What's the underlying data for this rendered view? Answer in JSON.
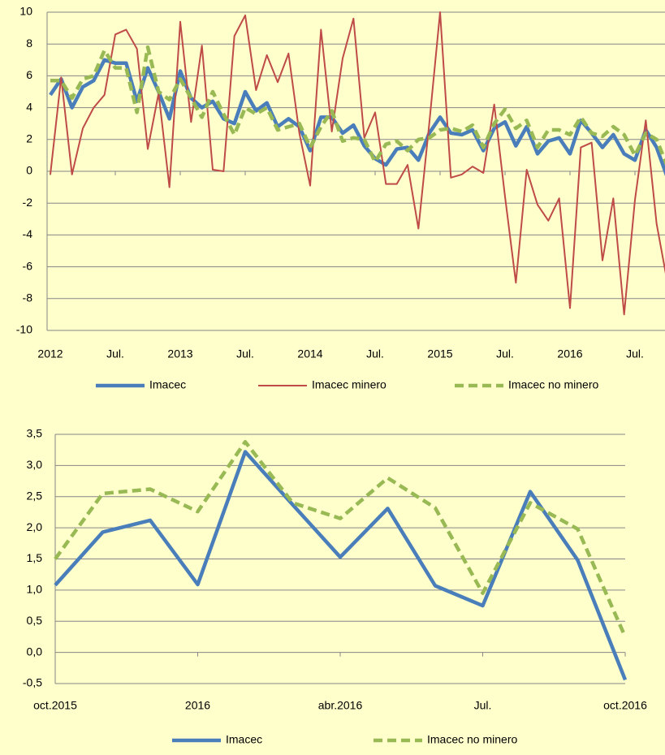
{
  "chart_data": [
    {
      "type": "line",
      "categories": [
        "2012",
        null,
        null,
        null,
        null,
        null,
        "Jul.",
        null,
        null,
        null,
        null,
        null,
        "2013",
        null,
        null,
        null,
        null,
        null,
        "Jul.",
        null,
        null,
        null,
        null,
        null,
        "2014",
        null,
        null,
        null,
        null,
        null,
        "Jul.",
        null,
        null,
        null,
        null,
        null,
        "2015",
        null,
        null,
        null,
        null,
        null,
        "Jul.",
        null,
        null,
        null,
        null,
        null,
        "2016",
        null,
        null,
        null,
        null,
        null,
        "Jul.",
        null,
        null,
        null
      ],
      "series": [
        {
          "name": "Imacec",
          "color": "#4a7ebb",
          "values": [
            4.8,
            5.8,
            4.0,
            5.3,
            5.7,
            7.0,
            6.8,
            6.8,
            4.4,
            6.5,
            5.0,
            3.3,
            6.3,
            4.6,
            4.0,
            4.4,
            3.3,
            3.0,
            5.0,
            3.8,
            4.3,
            2.8,
            3.3,
            2.8,
            1.3,
            3.4,
            3.4,
            2.4,
            2.9,
            1.6,
            0.8,
            0.4,
            1.4,
            1.5,
            0.7,
            2.4,
            3.4,
            2.4,
            2.3,
            2.6,
            1.3,
            2.7,
            3.1,
            1.6,
            2.8,
            1.1,
            1.9,
            2.1,
            1.1,
            3.2,
            2.4,
            1.5,
            2.3,
            1.1,
            0.7,
            2.6,
            1.5,
            -0.4
          ]
        },
        {
          "name": "Imacec minero",
          "color": "#be4b48",
          "values": [
            -0.2,
            5.9,
            -0.2,
            2.7,
            4.0,
            4.8,
            8.6,
            8.9,
            7.7,
            1.4,
            4.9,
            -1.0,
            9.4,
            3.1,
            7.9,
            0.1,
            0.0,
            8.5,
            9.8,
            5.1,
            7.3,
            5.6,
            7.4,
            2.4,
            -0.9,
            8.9,
            2.5,
            7.1,
            9.6,
            2.1,
            3.7,
            -0.8,
            -0.8,
            0.4,
            -3.6,
            3.0,
            10.0,
            -0.4,
            -0.2,
            0.3,
            -0.1,
            4.2,
            -1.6,
            -7.0,
            0.1,
            -2.1,
            -3.1,
            -1.7,
            -8.6,
            1.5,
            1.8,
            -5.6,
            -1.7,
            -9.0,
            -1.8,
            3.2,
            -3.3,
            -7.0
          ]
        },
        {
          "name": "Imacec no minero",
          "color": "#98b954",
          "values": [
            5.7,
            5.7,
            4.6,
            5.8,
            6.0,
            7.6,
            6.5,
            6.5,
            3.7,
            7.8,
            5.0,
            4.5,
            5.8,
            4.6,
            3.4,
            5.0,
            3.6,
            2.3,
            4.0,
            3.6,
            4.0,
            2.6,
            2.8,
            3.0,
            1.5,
            2.8,
            3.8,
            1.9,
            2.1,
            2.0,
            0.6,
            1.7,
            1.9,
            1.3,
            2.0,
            2.1,
            2.6,
            2.7,
            2.5,
            2.9,
            1.5,
            3.0,
            3.9,
            2.7,
            3.2,
            1.5,
            2.6,
            2.6,
            2.3,
            3.4,
            2.4,
            2.2,
            2.8,
            2.3,
            1.0,
            2.4,
            2.0,
            0.3
          ]
        }
      ],
      "ylim": [
        -10,
        10
      ],
      "yticks": [
        -10,
        -8,
        -6,
        -4,
        -2,
        0,
        2,
        4,
        6,
        8,
        10
      ],
      "grid": true
    },
    {
      "type": "line",
      "categories": [
        "oct.2015",
        null,
        null,
        "2016",
        null,
        null,
        "abr.2016",
        null,
        null,
        "Jul.",
        null,
        null,
        "oct.2016"
      ],
      "series": [
        {
          "name": "Imacec",
          "color": "#4a7ebb",
          "values": [
            1.08,
            1.93,
            2.12,
            1.09,
            3.22,
            2.37,
            1.53,
            2.31,
            1.07,
            0.75,
            2.58,
            1.48,
            -0.44
          ]
        },
        {
          "name": "Imacec no minero",
          "color": "#98b954",
          "values": [
            1.5,
            2.55,
            2.62,
            2.26,
            3.38,
            2.4,
            2.15,
            2.8,
            2.32,
            0.95,
            2.4,
            1.98,
            0.25
          ]
        }
      ],
      "ylim": [
        -0.5,
        3.5
      ],
      "yticks": [
        {
          "value": -0.5,
          "label": "-0,5"
        },
        {
          "value": 0,
          "label": "0,0"
        },
        {
          "value": 0.5,
          "label": "0,5"
        },
        {
          "value": 1,
          "label": "1,0"
        },
        {
          "value": 1.5,
          "label": "1,5"
        },
        {
          "value": 2,
          "label": "2,0"
        },
        {
          "value": 2.5,
          "label": "2,5"
        },
        {
          "value": 3,
          "label": "3,0"
        },
        {
          "value": 3.5,
          "label": "3,5"
        }
      ],
      "grid": true
    }
  ]
}
